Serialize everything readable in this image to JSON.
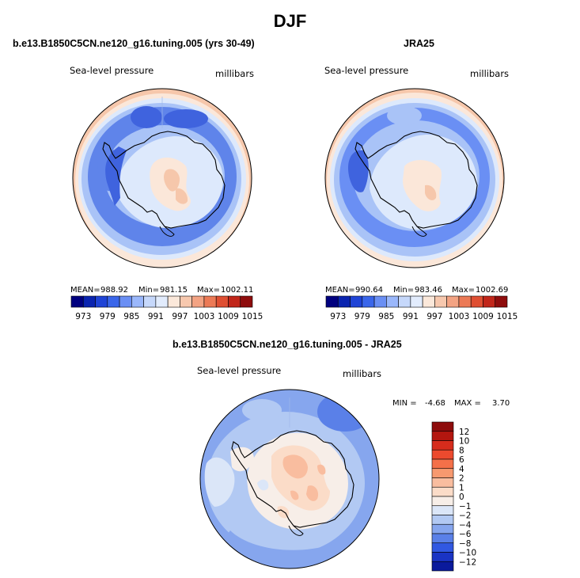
{
  "figure": {
    "title": "DJF",
    "colors": {
      "background": "#ffffff",
      "coastline": "#000000"
    }
  },
  "chart_data": [
    {
      "type": "heatmap",
      "projection": "south-polar stereographic",
      "title": "b.e13.B1850C5CN.ne120_g16.tuning.005 (yrs 30-49)",
      "variable_label": "Sea-level pressure",
      "units_label": "millibars",
      "stats": {
        "mean_label": "MEAN=",
        "mean": "988.92",
        "min_label": "Min=",
        "min": "981.15",
        "max_label": "Max=",
        "max": "1002.11"
      },
      "colorbar": {
        "orientation": "horizontal",
        "tick_labels": [
          "973",
          "979",
          "985",
          "991",
          "997",
          "1003",
          "1009",
          "1015"
        ],
        "colors": [
          "#00007f",
          "#0a24b0",
          "#1f44d6",
          "#3a66ea",
          "#6a8ff4",
          "#9ab7fb",
          "#c6d8fb",
          "#e2ecfd",
          "#fbe8da",
          "#f7c8ae",
          "#f3a383",
          "#ec7a56",
          "#df4f32",
          "#c1261a",
          "#8e0c0c"
        ]
      }
    },
    {
      "type": "heatmap",
      "projection": "south-polar stereographic",
      "title": "JRA25",
      "variable_label": "Sea-level pressure",
      "units_label": "millibars",
      "stats": {
        "mean_label": "MEAN=",
        "mean": "990.64",
        "min_label": "Min=",
        "min": "983.46",
        "max_label": "Max=",
        "max": "1002.69"
      },
      "colorbar": {
        "orientation": "horizontal",
        "tick_labels": [
          "973",
          "979",
          "985",
          "991",
          "997",
          "1003",
          "1009",
          "1015"
        ],
        "colors": [
          "#00007f",
          "#0a24b0",
          "#1f44d6",
          "#3a66ea",
          "#6a8ff4",
          "#9ab7fb",
          "#c6d8fb",
          "#e2ecfd",
          "#fbe8da",
          "#f7c8ae",
          "#f3a383",
          "#ec7a56",
          "#df4f32",
          "#c1261a",
          "#8e0c0c"
        ]
      }
    },
    {
      "type": "heatmap",
      "projection": "south-polar stereographic",
      "title": "b.e13.B1850C5CN.ne120_g16.tuning.005 - JRA25",
      "variable_label": "Sea-level pressure",
      "units_label": "millibars",
      "stats": {
        "min_label": "MIN =",
        "min": "-4.68",
        "max_label": "MAX =",
        "max": "3.70"
      },
      "colorbar": {
        "orientation": "vertical",
        "tick_labels": [
          "12",
          "10",
          "8",
          "6",
          "4",
          "2",
          "1",
          "0",
          "−1",
          "−2",
          "−4",
          "−6",
          "−8",
          "−10",
          "−12"
        ],
        "colors": [
          "#8e0c0c",
          "#b3160f",
          "#d62c1c",
          "#ec4a2e",
          "#f47049",
          "#f7996f",
          "#f9bd9f",
          "#fbdcc8",
          "#f7eee8",
          "#dbe6f8",
          "#b2c9f3",
          "#86a6ee",
          "#5a80e8",
          "#3158e2",
          "#1a34c4",
          "#0a1a9c"
        ]
      }
    }
  ]
}
